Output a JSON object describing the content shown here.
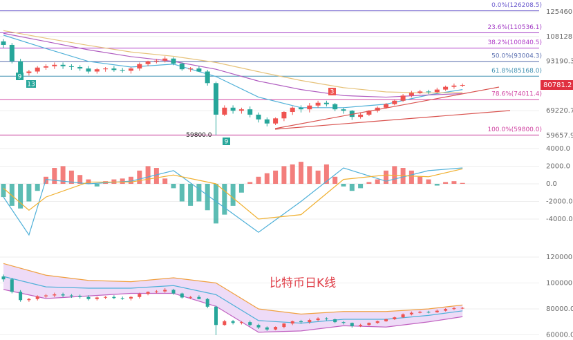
{
  "chart_data": [
    {
      "type": "candlestick",
      "yscale": "log",
      "ylim": [
        59657.9,
        125460.2
      ],
      "yticks": [
        125460.2,
        {
          "value": 108128,
          "label": "108128.0"
        },
        93190.3,
        69220.7,
        59657.9
      ],
      "up_color": "#ef5350",
      "down_color": "#26a69a",
      "open": [
        105000,
        102800,
        93190,
        86800,
        87600,
        89700,
        90400,
        91200,
        90400,
        90000,
        89200,
        87600,
        88800,
        89200,
        88400,
        88000,
        89200,
        91600,
        93100,
        93500,
        94700,
        91900,
        88800,
        89200,
        87600,
        81700,
        67600,
        70500,
        69200,
        69800,
        67600,
        65700,
        64100,
        66100,
        68700,
        70500,
        69800,
        71400,
        72600,
        72000,
        69800,
        69200,
        66700,
        67600,
        69200,
        70500,
        72000,
        73500,
        75800,
        77000,
        77700,
        77400,
        78600,
        79900,
        80500
      ],
      "high": [
        106500,
        104000,
        94500,
        88500,
        90500,
        91500,
        92500,
        92500,
        91500,
        91000,
        90500,
        89500,
        90000,
        90500,
        89500,
        90000,
        92500,
        93500,
        94500,
        96000,
        95500,
        92500,
        90000,
        90500,
        88500,
        82500,
        71500,
        71500,
        70500,
        71000,
        68500,
        66500,
        66500,
        69000,
        71000,
        71500,
        72500,
        73500,
        73500,
        72500,
        70500,
        69500,
        68500,
        69500,
        71000,
        72500,
        74000,
        76500,
        78000,
        78500,
        78500,
        79500,
        80500,
        81500,
        81500
      ],
      "low": [
        101000,
        92000,
        85500,
        85500,
        86500,
        88500,
        89000,
        89000,
        88500,
        88000,
        86500,
        86500,
        87500,
        87500,
        87000,
        86500,
        88000,
        90500,
        92000,
        92500,
        91000,
        88000,
        87500,
        87500,
        80500,
        59800,
        67000,
        68000,
        68000,
        66500,
        64500,
        63000,
        63500,
        65000,
        67500,
        68500,
        68500,
        70500,
        71000,
        69000,
        68000,
        65500,
        66000,
        67000,
        68500,
        70000,
        71500,
        73000,
        75000,
        76500,
        76500,
        77000,
        78000,
        79000,
        79800
      ],
      "close": [
        102800,
        93190,
        86800,
        87600,
        89700,
        90400,
        91200,
        90400,
        90000,
        89200,
        87600,
        88800,
        89200,
        88400,
        88000,
        89200,
        91600,
        93100,
        93500,
        94700,
        91900,
        88800,
        89200,
        87600,
        81700,
        67600,
        70500,
        69200,
        69800,
        67600,
        65700,
        64100,
        66100,
        68700,
        70500,
        69800,
        71400,
        72600,
        72000,
        69800,
        69200,
        66700,
        67600,
        69200,
        70500,
        72000,
        73500,
        75800,
        77000,
        77700,
        77400,
        78600,
        79900,
        80500,
        80781.2
      ],
      "low_label": {
        "value": 59800,
        "label": "59800.0"
      },
      "markers": [
        "9",
        "13",
        "3",
        "9"
      ],
      "fib_levels": [
        {
          "value": 126208.5,
          "label": "0.0%(126208.5)",
          "color": "#6a5acd"
        },
        {
          "value": 110536.1,
          "label": "23.6%(110536.1)",
          "color": "#a23bc4"
        },
        {
          "value": 100840.5,
          "label": "38.2%(100840.5)",
          "color": "#b03cc8"
        },
        {
          "value": 93004.3,
          "label": "50.0%(93004.3)",
          "color": "#5a6fb0"
        },
        {
          "value": 85168.0,
          "label": "61.8%(85168.0)",
          "color": "#3f8fb0"
        },
        {
          "value": 74011.4,
          "label": "78.6%(74011.4)",
          "color": "#d040a0"
        },
        {
          "value": 59800.0,
          "label": "100.0%(59800.0)",
          "color": "#d040a0"
        }
      ],
      "series": [
        {
          "color": "#4fb0d8",
          "x": [
            0,
            5,
            10,
            15,
            20,
            25,
            30,
            35,
            40,
            45,
            50,
            54
          ],
          "values": [
            109000,
            100600,
            93100,
            90000,
            91600,
            85000,
            75100,
            70500,
            70500,
            72000,
            76100,
            78600
          ]
        },
        {
          "color": "#b05cc0",
          "x": [
            0,
            5,
            10,
            15,
            20,
            25,
            30,
            35,
            40,
            45,
            50,
            54
          ],
          "values": [
            110200,
            104900,
            99800,
            95800,
            93100,
            88800,
            82700,
            78600,
            75800,
            75100,
            76100,
            76700
          ]
        },
        {
          "color": "#e6c27a",
          "x": [
            0,
            5,
            10,
            15,
            20,
            25,
            30,
            35,
            40,
            45,
            50,
            54
          ],
          "values": [
            112000,
            107000,
            102500,
            98500,
            96000,
            92500,
            87500,
            83000,
            79500,
            77500,
            77000,
            77200
          ]
        }
      ]
    },
    {
      "type": "macd",
      "ylim": [
        -6000,
        4500
      ],
      "yticks": [
        {
          "value": 4000,
          "label": "4000.0"
        },
        {
          "value": 2000,
          "label": "2000.0"
        },
        {
          "value": 0,
          "label": "0.0"
        },
        {
          "value": -2000,
          "label": "-2000.0"
        },
        {
          "value": -4000,
          "label": "-4000.0"
        }
      ],
      "up_color": "#ef5350",
      "down_color": "#26a69a",
      "values": [
        -1500,
        -2500,
        -2800,
        -2000,
        -800,
        800,
        1800,
        2000,
        1500,
        1000,
        500,
        -300,
        300,
        500,
        600,
        800,
        1500,
        2000,
        1800,
        600,
        -500,
        -2000,
        -2500,
        -2000,
        -3000,
        -4500,
        -3500,
        -2500,
        -1000,
        200,
        800,
        1200,
        1500,
        2000,
        2200,
        2500,
        2000,
        1500,
        2200,
        800,
        -300,
        -800,
        -500,
        200,
        500,
        1500,
        2000,
        1800,
        1500,
        800,
        500,
        -200,
        200,
        300,
        100
      ],
      "series": [
        {
          "color": "#4fb0d8",
          "x": [
            0,
            3,
            5,
            10,
            15,
            20,
            25,
            30,
            35,
            40,
            45,
            50,
            54
          ],
          "values": [
            -1500,
            -5800,
            500,
            0,
            300,
            1500,
            -2000,
            -5500,
            -2000,
            1800,
            300,
            1500,
            1800
          ]
        },
        {
          "color": "#f0b030",
          "x": [
            0,
            3,
            5,
            10,
            15,
            20,
            25,
            30,
            35,
            40,
            45,
            50,
            54
          ],
          "values": [
            -500,
            -3000,
            -1500,
            200,
            200,
            1000,
            0,
            -4000,
            -3500,
            500,
            1000,
            800,
            1700
          ]
        }
      ]
    },
    {
      "type": "bollinger",
      "title": "比特币日K线",
      "ylim": [
        58000,
        125000
      ],
      "yticks": [
        {
          "value": 120000,
          "label": "120000.0"
        },
        {
          "value": 100000,
          "label": "100000.0"
        },
        {
          "value": 80000,
          "label": "80000.0"
        },
        {
          "value": 60000,
          "label": "60000.0"
        }
      ],
      "band_color": "#ead2f5",
      "series": [
        {
          "color": "#f0a040",
          "x": [
            0,
            5,
            10,
            15,
            20,
            25,
            30,
            35,
            40,
            45,
            50,
            54
          ],
          "values": [
            115000,
            106000,
            102000,
            101000,
            104000,
            100000,
            80000,
            76000,
            78000,
            78000,
            80000,
            83000
          ]
        },
        {
          "color": "#4fb0d8",
          "x": [
            0,
            5,
            10,
            15,
            20,
            25,
            30,
            35,
            40,
            45,
            50,
            54
          ],
          "values": [
            105000,
            97000,
            96000,
            96000,
            98000,
            91000,
            71000,
            69000,
            72000,
            72000,
            75000,
            78500
          ]
        },
        {
          "color": "#c060c0",
          "x": [
            0,
            5,
            10,
            15,
            20,
            25,
            30,
            35,
            40,
            45,
            50,
            54
          ],
          "values": [
            95000,
            88000,
            90000,
            92000,
            92000,
            82000,
            62000,
            63000,
            67000,
            66000,
            70000,
            74000
          ]
        }
      ]
    }
  ]
}
